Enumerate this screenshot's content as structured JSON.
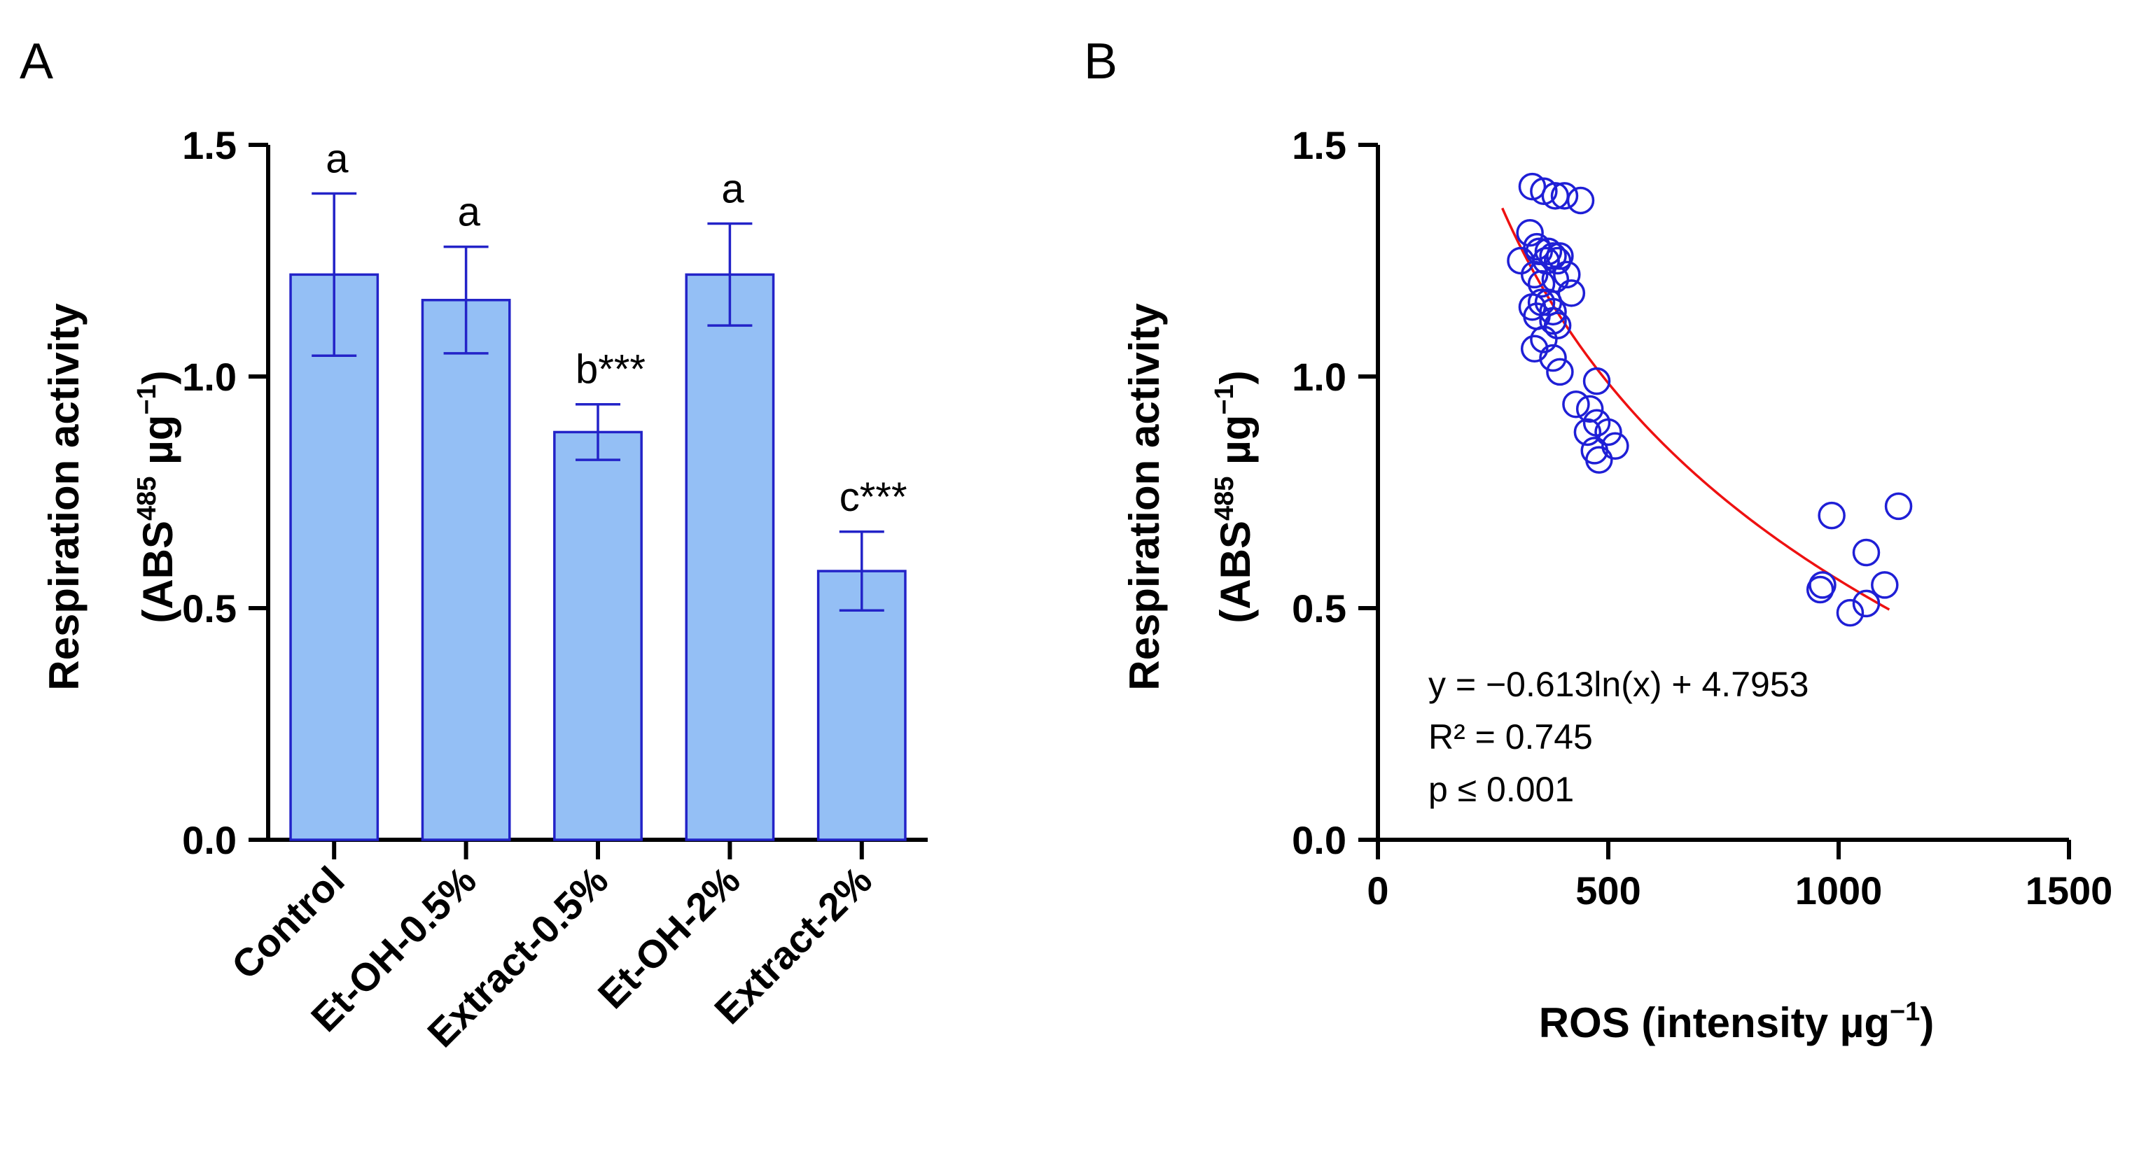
{
  "colors": {
    "bar_fill": "#94bff5",
    "bar_stroke": "#2323c8",
    "error_bar": "#2323c8",
    "marker": "#1f1fd6",
    "fit_line": "#ee1111",
    "axis": "#000000"
  },
  "chart_data": [
    {
      "type": "bar",
      "panel_label": "A",
      "categories": [
        "Control",
        "Et-OH-0.5%",
        "Extract-0.5%",
        "Et-OH-2%",
        "Extract-2%"
      ],
      "values": [
        1.22,
        1.165,
        0.88,
        1.22,
        0.58
      ],
      "error": [
        0.175,
        0.115,
        0.06,
        0.11,
        0.085
      ],
      "significance_labels": [
        "a",
        "a",
        "b***",
        "a",
        "c***"
      ],
      "ylabel_line1": "Respiration activity",
      "ylabel_line2_prefix": "(ABS",
      "ylabel_sup1": "485",
      "ylabel_mid": " µg",
      "ylabel_sup2": "−1",
      "ylabel_suffix": ")",
      "ylim": [
        0,
        1.5
      ],
      "yticks": [
        0.0,
        0.5,
        1.0,
        1.5
      ],
      "ytick_labels": [
        "0.0",
        "0.5",
        "1.0",
        "1.5"
      ],
      "grid": false
    },
    {
      "type": "scatter",
      "panel_label": "B",
      "x": [
        335,
        360,
        385,
        405,
        440,
        310,
        345,
        350,
        370,
        380,
        395,
        330,
        365,
        390,
        410,
        340,
        355,
        385,
        420,
        355,
        370,
        335,
        380,
        345,
        380,
        390,
        360,
        340,
        395,
        380,
        430,
        475,
        460,
        475,
        500,
        455,
        470,
        480,
        515,
        985,
        960,
        965,
        1060,
        1130,
        1100,
        1025,
        1060
      ],
      "y": [
        1.41,
        1.4,
        1.39,
        1.39,
        1.38,
        1.25,
        1.28,
        1.27,
        1.27,
        1.26,
        1.26,
        1.31,
        1.25,
        1.25,
        1.22,
        1.22,
        1.2,
        1.21,
        1.18,
        1.16,
        1.16,
        1.15,
        1.14,
        1.13,
        1.12,
        1.11,
        1.08,
        1.06,
        1.01,
        1.04,
        0.94,
        0.99,
        0.93,
        0.9,
        0.88,
        0.88,
        0.84,
        0.82,
        0.85,
        0.7,
        0.54,
        0.55,
        0.62,
        0.72,
        0.55,
        0.49,
        0.51
      ],
      "fit": {
        "model": "log",
        "a": -0.613,
        "b": 4.7953,
        "x_range": [
          270,
          1110
        ]
      },
      "annotations": [
        "y = −0.613ln(x) + 4.7953",
        "R² = 0.745",
        "p ≤ 0.001"
      ],
      "xlabel_prefix": "ROS (intensity µg",
      "xlabel_sup": "−1",
      "xlabel_suffix": ")",
      "ylabel_line1": "Respiration activity",
      "ylabel_line2_prefix": "(ABS",
      "ylabel_sup1": "485",
      "ylabel_mid": " µg",
      "ylabel_sup2": "−1",
      "ylabel_suffix": ")",
      "xlim": [
        0,
        1500
      ],
      "ylim": [
        0,
        1.5
      ],
      "xticks": [
        0,
        500,
        1000,
        1500
      ],
      "xtick_labels": [
        "0",
        "500",
        "1000",
        "1500"
      ],
      "yticks": [
        0.0,
        0.5,
        1.0,
        1.5
      ],
      "ytick_labels": [
        "0.0",
        "0.5",
        "1.0",
        "1.5"
      ],
      "grid": false
    }
  ]
}
